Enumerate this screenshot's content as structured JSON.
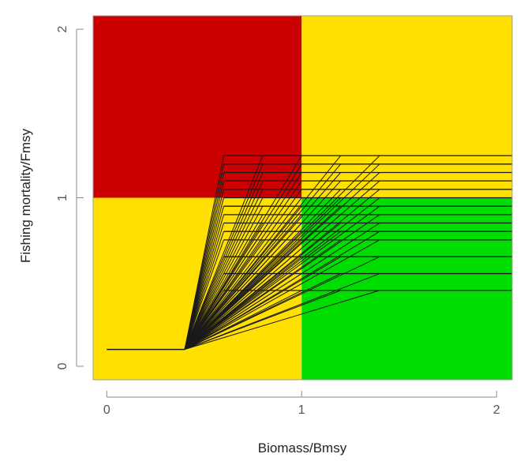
{
  "chart_data": {
    "type": "line",
    "title": "",
    "xlabel": "Biomass/Bmsy",
    "ylabel": "Fishing mortality/Fmsy",
    "xlim": [
      -0.07,
      2.08
    ],
    "ylim": [
      -0.08,
      2.08
    ],
    "x_ticks": [
      {
        "value": 0,
        "label": "0"
      },
      {
        "value": 1,
        "label": "1"
      },
      {
        "value": 2,
        "label": "2"
      }
    ],
    "y_ticks": [
      {
        "value": 0,
        "label": "0"
      },
      {
        "value": 1,
        "label": "1"
      },
      {
        "value": 2,
        "label": "2"
      }
    ],
    "grid": false,
    "legend": "none",
    "quadrants": [
      {
        "x": [
          -0.07,
          1
        ],
        "y": [
          1,
          2.08
        ],
        "color": "#cc0000"
      },
      {
        "x": [
          1,
          2.08
        ],
        "y": [
          1,
          2.08
        ],
        "color": "#ffe000"
      },
      {
        "x": [
          -0.07,
          1
        ],
        "y": [
          -0.08,
          1
        ],
        "color": "#ffe000"
      },
      {
        "x": [
          1,
          2.08
        ],
        "y": [
          -0.08,
          1
        ],
        "color": "#00dd00"
      }
    ],
    "line_color": "#1a1a1a",
    "harvest_control_rules": {
      "floor_f": 0.1,
      "floor_start_b": 0,
      "lower_breakpoint_b": 0.4,
      "breakpoint_b": [
        0.6,
        0.8,
        1.0,
        1.2,
        1.4
      ],
      "ceiling_f": [
        0.45,
        0.55,
        0.65,
        0.75,
        0.8,
        0.85,
        0.9,
        0.95,
        1.0,
        1.05,
        1.1,
        1.15,
        1.2,
        1.25
      ],
      "x_max": 2.08
    }
  }
}
